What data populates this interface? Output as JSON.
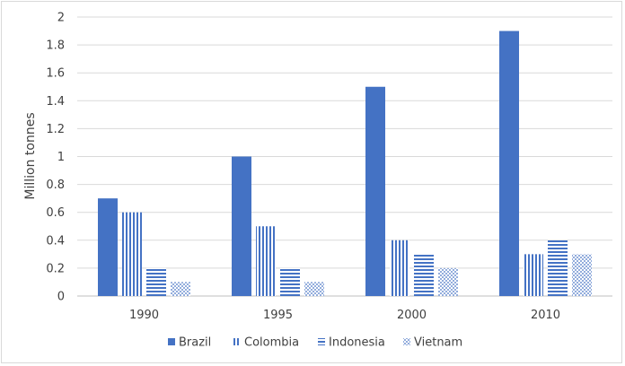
{
  "chart_data": {
    "type": "bar",
    "title": "",
    "xlabel": "",
    "ylabel": "Million tonnes",
    "ylim": [
      0,
      2
    ],
    "yticks": [
      "0",
      "0.2",
      "0.4",
      "0.6",
      "0.8",
      "1",
      "1.2",
      "1.4",
      "1.6",
      "1.8",
      "2"
    ],
    "categories": [
      "1990",
      "1995",
      "2000",
      "2010"
    ],
    "grid": true,
    "legend_position": "bottom",
    "series": [
      {
        "name": "Brazil",
        "values": [
          0.7,
          1.0,
          1.5,
          1.9
        ],
        "pattern": "solid",
        "color": "#4472c4"
      },
      {
        "name": "Colombia",
        "values": [
          0.6,
          0.5,
          0.4,
          0.3
        ],
        "pattern": "vertical-lines",
        "color": "#4472c4"
      },
      {
        "name": "Indonesia",
        "values": [
          0.2,
          0.2,
          0.3,
          0.4
        ],
        "pattern": "horizontal-lines",
        "color": "#4472c4"
      },
      {
        "name": "Vietnam",
        "values": [
          0.1,
          0.1,
          0.2,
          0.3
        ],
        "pattern": "dots",
        "color": "#4472c4"
      }
    ]
  }
}
